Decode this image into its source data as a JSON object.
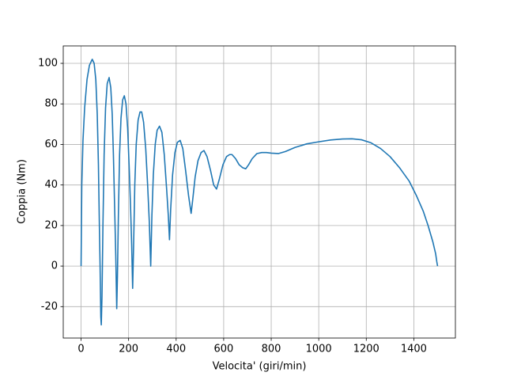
{
  "chart_data": {
    "type": "line",
    "xlabel": "Velocita' (giri/min)",
    "ylabel": "Coppia (Nm)",
    "x": [
      0,
      3,
      8,
      15,
      25,
      35,
      47,
      55,
      62,
      68,
      73,
      77,
      80,
      83,
      85,
      88,
      92,
      97,
      103,
      110,
      118,
      125,
      131,
      136,
      141,
      146,
      150,
      153,
      157,
      162,
      168,
      175,
      182,
      189,
      196,
      202,
      208,
      213,
      217,
      221,
      226,
      232,
      240,
      248,
      255,
      263,
      272,
      280,
      287,
      293,
      298,
      304,
      312,
      320,
      330,
      340,
      350,
      360,
      367,
      372,
      377,
      385,
      395,
      405,
      417,
      428,
      440,
      452,
      463,
      470,
      480,
      492,
      505,
      517,
      530,
      545,
      558,
      570,
      582,
      597,
      612,
      625,
      635,
      650,
      665,
      680,
      693,
      705,
      720,
      740,
      760,
      780,
      800,
      830,
      860,
      900,
      950,
      1000,
      1050,
      1100,
      1140,
      1180,
      1220,
      1260,
      1300,
      1340,
      1380,
      1410,
      1440,
      1460,
      1480,
      1492,
      1497,
      1500
    ],
    "series": [
      {
        "color": "#1f77b4",
        "values": [
          0,
          40,
          62,
          78,
          92,
          99,
          102,
          100,
          92,
          75,
          50,
          20,
          0,
          -25,
          -29,
          -15,
          20,
          55,
          78,
          90,
          93,
          88,
          75,
          55,
          30,
          5,
          -21,
          -5,
          25,
          55,
          73,
          82,
          84,
          80,
          68,
          50,
          30,
          10,
          -11,
          10,
          40,
          60,
          72,
          76,
          76,
          71,
          58,
          40,
          22,
          0,
          25,
          45,
          60,
          67,
          69,
          66,
          55,
          38,
          25,
          13,
          28,
          45,
          56,
          61,
          62,
          58,
          47,
          35,
          26,
          33,
          44,
          52,
          56,
          57,
          54,
          47,
          40,
          38,
          43,
          50,
          54,
          55,
          55,
          53,
          50,
          48.5,
          48,
          50,
          53,
          55.5,
          56,
          56,
          55.7,
          55.5,
          56.5,
          58.5,
          60.3,
          61.3,
          62.2,
          62.7,
          62.8,
          62.3,
          60.8,
          58,
          54,
          48.5,
          42,
          35,
          27,
          20,
          12,
          6,
          2,
          0
        ]
      }
    ],
    "xlim": [
      -75,
      1575
    ],
    "ylim": [
      -35.5,
      108.6
    ],
    "xticks": [
      0,
      200,
      400,
      600,
      800,
      1000,
      1200,
      1400
    ],
    "yticks": [
      -20,
      0,
      20,
      40,
      60,
      80,
      100
    ],
    "grid": true
  }
}
